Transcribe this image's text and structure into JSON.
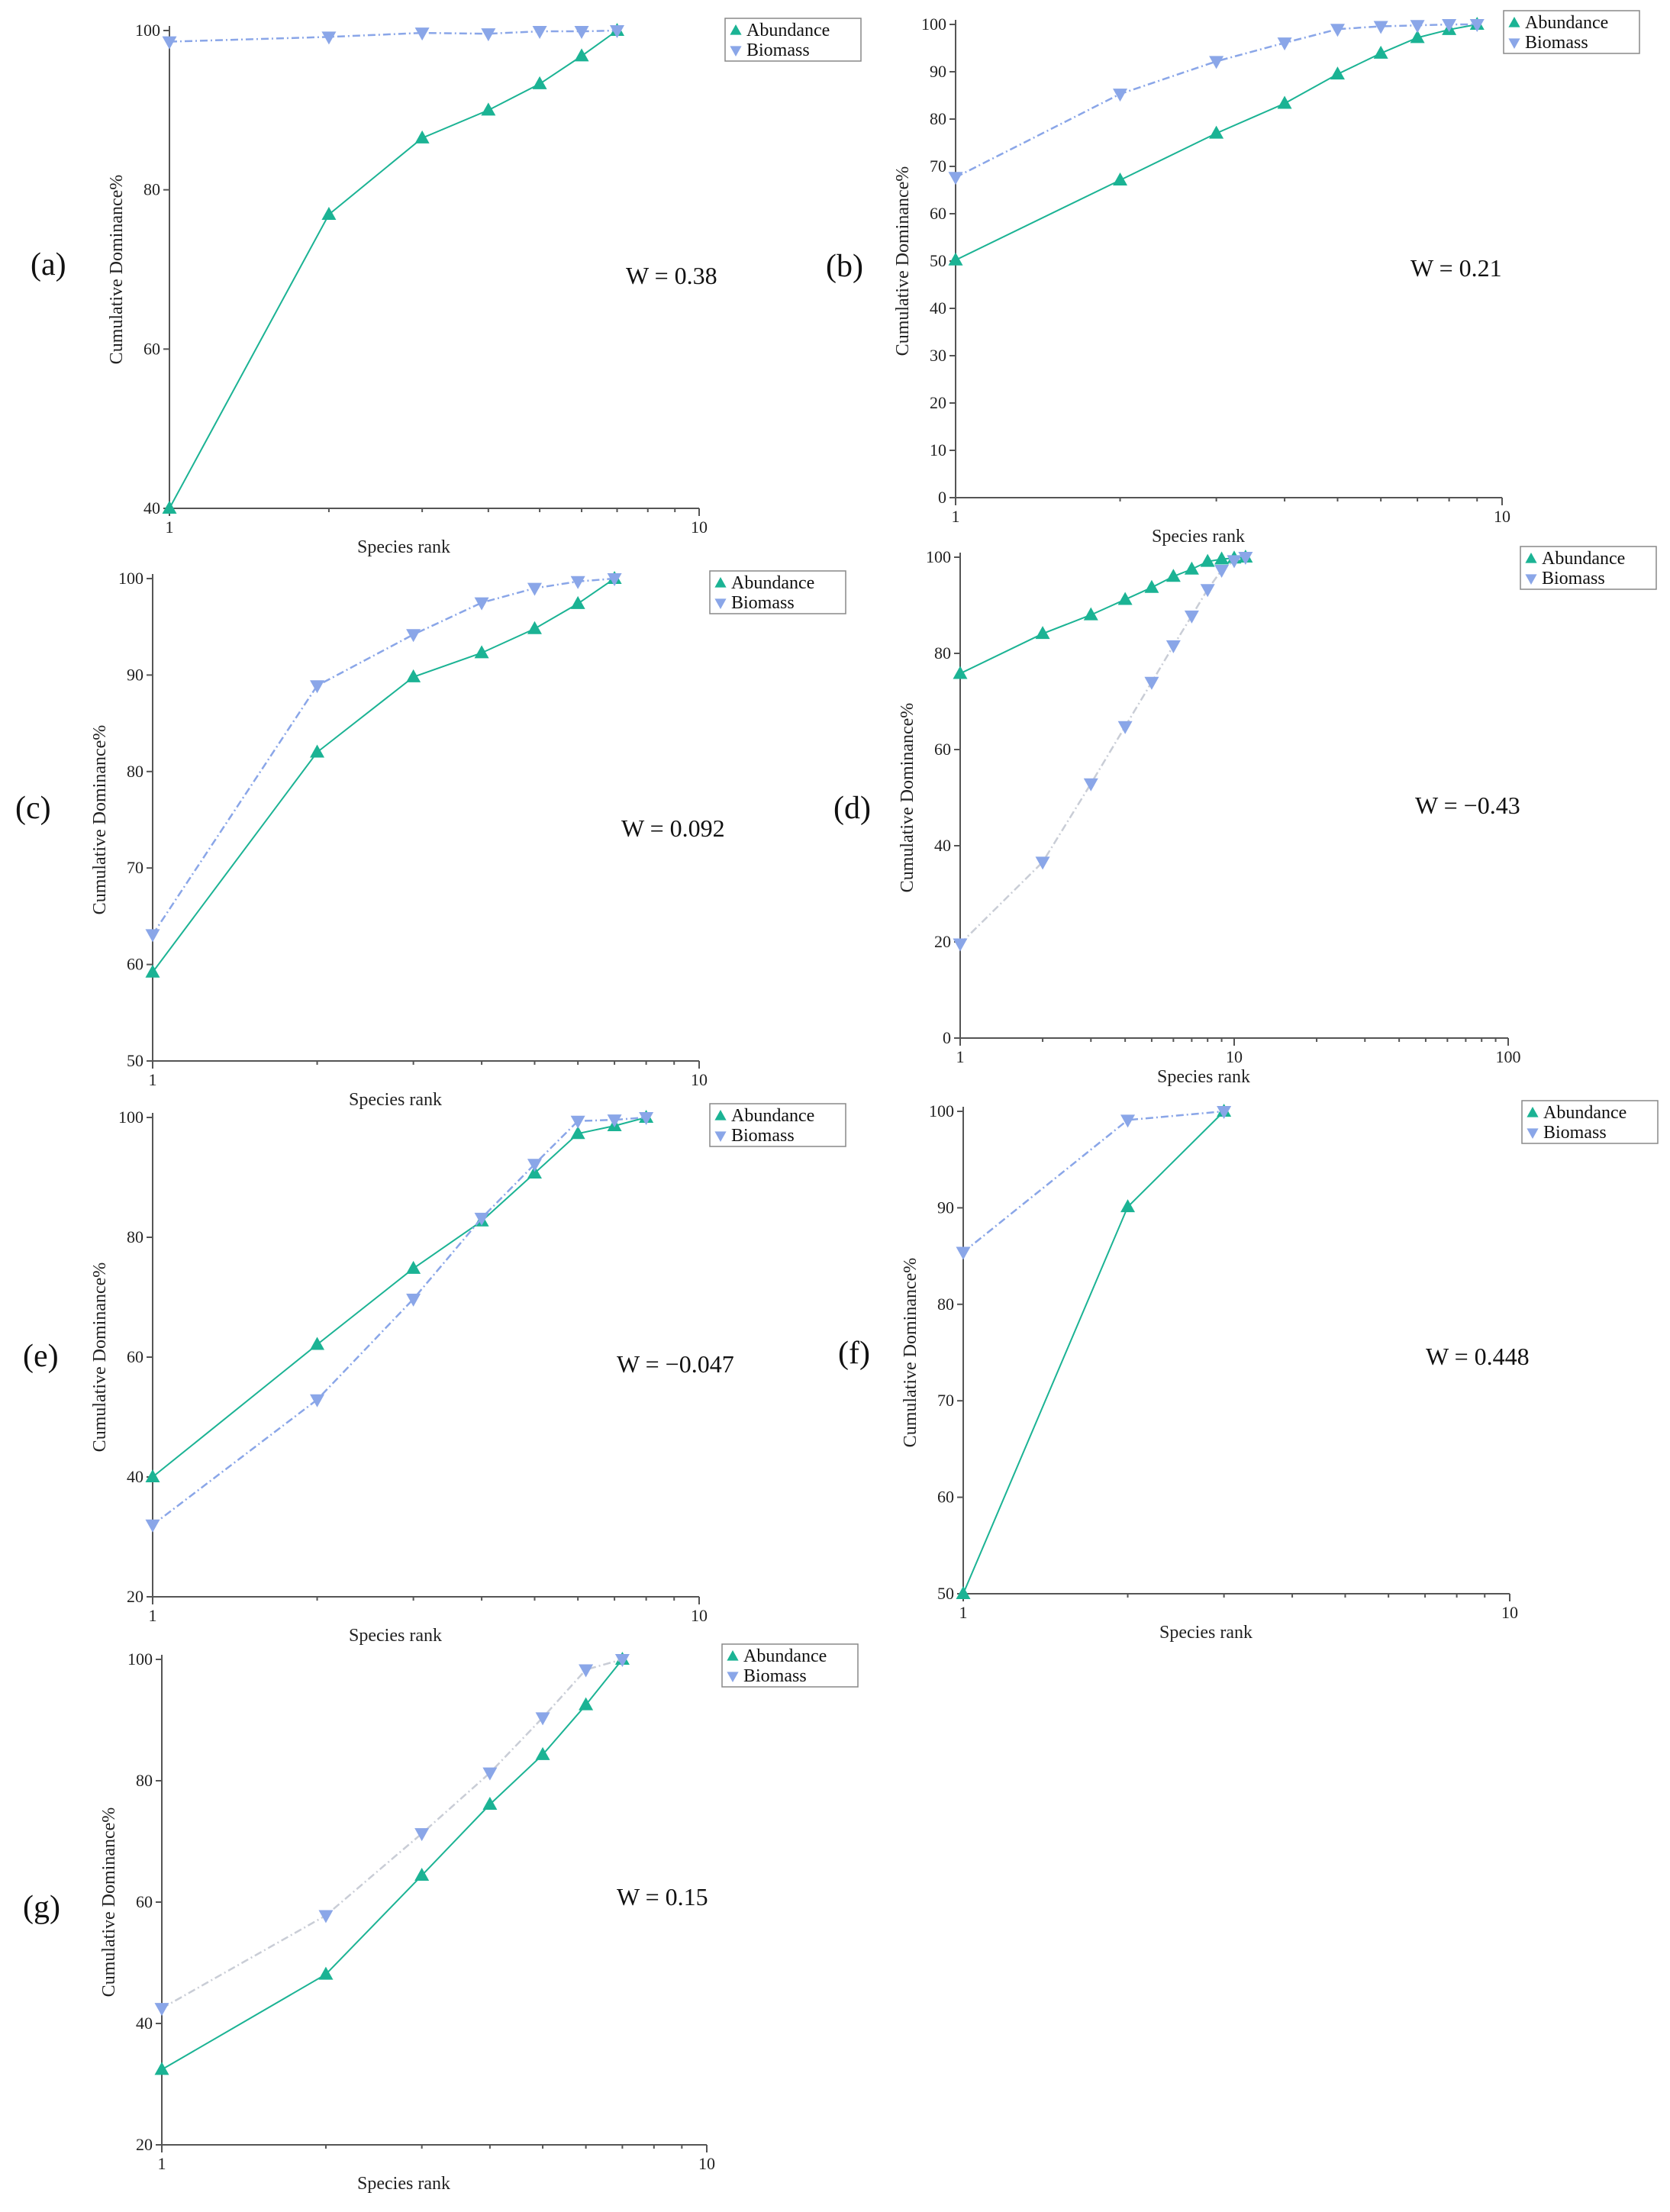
{
  "figure": {
    "colors": {
      "abundance": "#1bb394",
      "biomass": "#8aa6e8",
      "biomass_light": "#c9cdd6"
    },
    "legend": {
      "abundance": "Abundance",
      "biomass": "Biomass"
    }
  },
  "chart_data": [
    {
      "type": "line",
      "panel": "(a)",
      "annotation": "W = 0.38",
      "xlabel": "Species rank",
      "ylabel": "Cumulative Dominance%",
      "xscale": "log",
      "xlim": [
        1,
        10
      ],
      "xticks": [
        1,
        10
      ],
      "ylim": [
        40,
        100
      ],
      "yticks": [
        40,
        60,
        80,
        100
      ],
      "legend_position": "top-right",
      "series": [
        {
          "name": "Abundance",
          "x": [
            1,
            2,
            3,
            4,
            5,
            6,
            7
          ],
          "values": [
            40,
            76.9,
            86.5,
            90.0,
            93.3,
            96.8,
            100
          ]
        },
        {
          "name": "Biomass",
          "x": [
            1,
            2,
            3,
            4,
            5,
            6,
            7
          ],
          "values": [
            98.6,
            99.2,
            99.7,
            99.6,
            99.9,
            99.9,
            100
          ]
        }
      ]
    },
    {
      "type": "line",
      "panel": "(b)",
      "annotation": "W = 0.21",
      "xlabel": "Species rank",
      "ylabel": "Cumulative Dominance%",
      "xscale": "log",
      "xlim": [
        1,
        10
      ],
      "xticks": [
        1,
        10
      ],
      "ylim": [
        0,
        100
      ],
      "yticks": [
        0,
        10,
        20,
        30,
        40,
        50,
        60,
        70,
        80,
        90,
        100
      ],
      "legend_position": "top-right",
      "series": [
        {
          "name": "Abundance",
          "x": [
            1,
            2,
            3,
            4,
            5,
            6,
            7,
            8,
            9
          ],
          "values": [
            50.2,
            67.1,
            77.0,
            83.3,
            89.5,
            93.9,
            97.2,
            98.9,
            100
          ]
        },
        {
          "name": "Biomass",
          "x": [
            1,
            2,
            3,
            4,
            5,
            6,
            7,
            8,
            9
          ],
          "values": [
            67.7,
            85.3,
            92.2,
            96.1,
            99.0,
            99.6,
            99.8,
            100,
            100
          ]
        }
      ]
    },
    {
      "type": "line",
      "panel": "(c)",
      "annotation": "W = 0.092",
      "xlabel": "Species rank",
      "ylabel": "Cumulative Dominance%",
      "xscale": "log",
      "xlim": [
        1,
        10
      ],
      "xticks": [
        1,
        10
      ],
      "ylim": [
        50,
        100
      ],
      "yticks": [
        50,
        60,
        70,
        80,
        90,
        100
      ],
      "legend_position": "top-right",
      "series": [
        {
          "name": "Abundance",
          "x": [
            1,
            2,
            3,
            4,
            5,
            6,
            7
          ],
          "values": [
            59.2,
            82.0,
            89.8,
            92.3,
            94.8,
            97.4,
            100
          ]
        },
        {
          "name": "Biomass",
          "x": [
            1,
            2,
            3,
            4,
            5,
            6,
            7
          ],
          "values": [
            63.1,
            88.9,
            94.2,
            97.5,
            99.0,
            99.7,
            100
          ]
        }
      ]
    },
    {
      "type": "line",
      "panel": "(d)",
      "annotation": "W = −0.43",
      "xlabel": "Species rank",
      "ylabel": "Cumulative Dominance%",
      "xscale": "log",
      "xlim": [
        1,
        100
      ],
      "xticks": [
        1,
        10,
        100
      ],
      "ylim": [
        0,
        100
      ],
      "yticks": [
        0,
        20,
        40,
        60,
        80,
        100
      ],
      "legend_position": "top-right",
      "series": [
        {
          "name": "Abundance",
          "x": [
            1,
            2,
            3,
            4,
            5,
            6,
            7,
            8,
            9,
            10,
            11
          ],
          "values": [
            75.8,
            84.1,
            88.0,
            91.2,
            93.7,
            96.0,
            97.5,
            99.1,
            99.6,
            99.8,
            100
          ]
        },
        {
          "name": "Biomass",
          "x": [
            1,
            2,
            3,
            4,
            5,
            6,
            7,
            8,
            9,
            10,
            11
          ],
          "values": [
            19.6,
            36.6,
            52.9,
            64.8,
            74.0,
            81.6,
            87.8,
            93.3,
            97.3,
            99.3,
            100
          ]
        }
      ]
    },
    {
      "type": "line",
      "panel": "(e)",
      "annotation": "W = −0.047",
      "xlabel": "Species rank",
      "ylabel": "Cumulative Dominance%",
      "xscale": "log",
      "xlim": [
        1,
        10
      ],
      "xticks": [
        1,
        10
      ],
      "ylim": [
        20,
        100
      ],
      "yticks": [
        20,
        40,
        60,
        80,
        100
      ],
      "legend_position": "top-right",
      "series": [
        {
          "name": "Abundance",
          "x": [
            1,
            2,
            3,
            4,
            5,
            6,
            7,
            8
          ],
          "values": [
            40.0,
            62.1,
            74.8,
            82.7,
            90.7,
            97.3,
            98.6,
            100
          ]
        },
        {
          "name": "Biomass",
          "x": [
            1,
            2,
            3,
            4,
            5,
            6,
            7,
            8
          ],
          "values": [
            32.0,
            52.9,
            69.7,
            83.2,
            92.2,
            99.4,
            99.6,
            100
          ]
        }
      ]
    },
    {
      "type": "line",
      "panel": "(f)",
      "annotation": "W = 0.448",
      "xlabel": "Species rank",
      "ylabel": "Cumulative Dominance%",
      "xscale": "log",
      "xlim": [
        1,
        10
      ],
      "xticks": [
        1,
        10
      ],
      "ylim": [
        50,
        100
      ],
      "yticks": [
        50,
        60,
        70,
        80,
        90,
        100
      ],
      "legend_position": "top-right",
      "series": [
        {
          "name": "Abundance",
          "x": [
            1,
            2,
            3
          ],
          "values": [
            50,
            90.1,
            100
          ]
        },
        {
          "name": "Biomass",
          "x": [
            1,
            2,
            3
          ],
          "values": [
            85.4,
            99.1,
            100
          ]
        }
      ]
    },
    {
      "type": "line",
      "panel": "(g)",
      "annotation": "W = 0.15",
      "xlabel": "Species rank",
      "ylabel": "Cumulative Dominance%",
      "xscale": "log",
      "xlim": [
        1,
        10
      ],
      "xticks": [
        1,
        10
      ],
      "ylim": [
        20,
        100
      ],
      "yticks": [
        20,
        40,
        60,
        80,
        100
      ],
      "legend_position": "top-right",
      "series": [
        {
          "name": "Abundance",
          "x": [
            1,
            2,
            3,
            4,
            5,
            6,
            7
          ],
          "values": [
            32.4,
            48.1,
            64.4,
            76.1,
            84.3,
            92.5,
            100
          ]
        },
        {
          "name": "Biomass",
          "x": [
            1,
            2,
            3,
            4,
            5,
            6,
            7
          ],
          "values": [
            42.5,
            57.8,
            71.3,
            81.3,
            90.4,
            98.3,
            100
          ]
        }
      ]
    }
  ]
}
